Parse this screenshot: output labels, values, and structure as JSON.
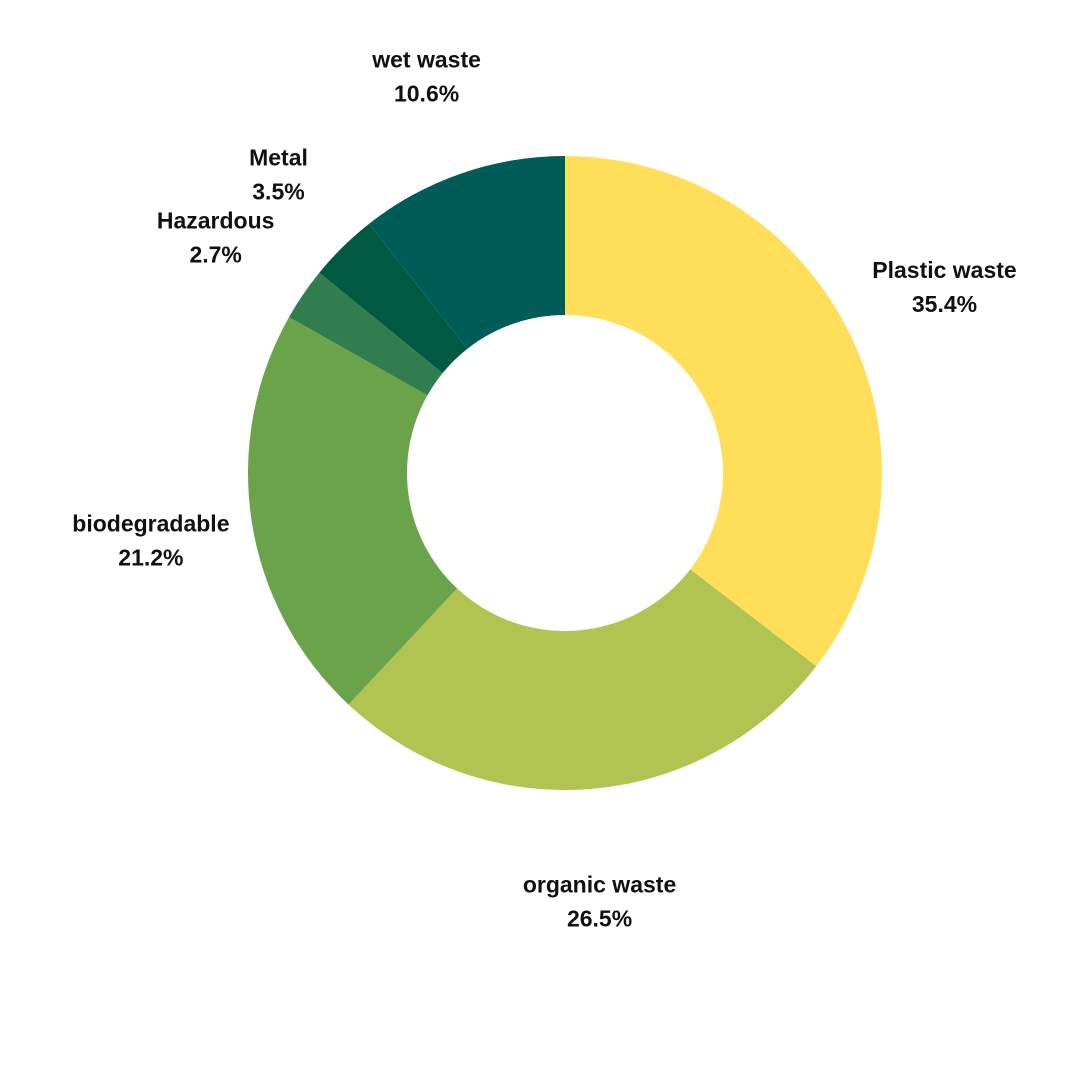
{
  "chart_data": {
    "type": "pie",
    "variant": "donut",
    "title": "",
    "legend": "none",
    "slices": [
      {
        "label": "Plastic waste",
        "value": 35.4,
        "display": "35.4%",
        "color": "#FFDF5A"
      },
      {
        "label": "organic waste",
        "value": 26.5,
        "display": "26.5%",
        "color": "#B1C350"
      },
      {
        "label": "biodegradable",
        "value": 21.2,
        "display": "21.2%",
        "color": "#6BA34B"
      },
      {
        "label": "Hazardous",
        "value": 2.7,
        "display": "2.7%",
        "color": "#317D4D"
      },
      {
        "label": "Metal",
        "value": 3.5,
        "display": "3.5%",
        "color": "#005A42"
      },
      {
        "label": "wet waste",
        "value": 10.6,
        "display": "10.6%",
        "color": "#005C57"
      }
    ]
  }
}
